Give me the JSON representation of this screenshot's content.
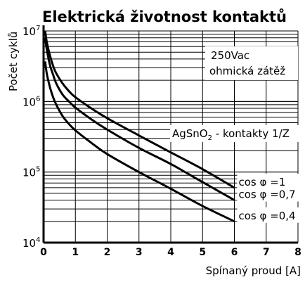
{
  "chart_data": {
    "type": "line",
    "title": "Elektrická životnost kontaktů",
    "xlabel": "Spínaný proud [A]",
    "ylabel": "Počet cyklů",
    "y_scale": "log",
    "grid": true,
    "xlim": [
      0,
      8
    ],
    "ylim": [
      10000,
      10000000
    ],
    "x_ticks": [
      "0",
      "1",
      "2",
      "3",
      "4",
      "5",
      "6",
      "7",
      "8"
    ],
    "y_ticks": [
      {
        "value": 10000,
        "base": "10",
        "exp": "4"
      },
      {
        "value": 100000,
        "base": "10",
        "exp": "5"
      },
      {
        "value": 1000000,
        "base": "10",
        "exp": "6"
      },
      {
        "value": 10000000,
        "base": "10",
        "exp": "7"
      }
    ],
    "annotations": {
      "voltage": "250Vac",
      "load": "ohmická zátěž",
      "material_prefix": "AgSnO",
      "material_sub": "2",
      "material_suffix": " - kontakty 1/Z"
    },
    "series": [
      {
        "name": "cos φ =1",
        "x": [
          0.05,
          0.1,
          0.2,
          0.3,
          0.4,
          0.6,
          0.8,
          1,
          1.5,
          2,
          3,
          4,
          5,
          6
        ],
        "y": [
          10000000,
          7000000,
          4500000,
          3200000,
          2500000,
          1800000,
          1400000,
          1150000,
          800000,
          580000,
          330000,
          190000,
          110000,
          60000
        ]
      },
      {
        "name": "cos φ =0,7",
        "x": [
          0.05,
          0.1,
          0.2,
          0.3,
          0.4,
          0.6,
          0.8,
          1,
          1.5,
          2,
          3,
          4,
          5,
          6
        ],
        "y": [
          8000000,
          5500000,
          3300000,
          2400000,
          1800000,
          1250000,
          1000000,
          820000,
          560000,
          400000,
          220000,
          130000,
          72000,
          40000
        ]
      },
      {
        "name": "cos φ =0,4",
        "x": [
          0.05,
          0.1,
          0.2,
          0.3,
          0.4,
          0.6,
          0.8,
          1,
          1.5,
          2,
          3,
          4,
          5,
          6
        ],
        "y": [
          3700000,
          2500000,
          1600000,
          1150000,
          900000,
          620000,
          480000,
          390000,
          260000,
          180000,
          100000,
          58000,
          33000,
          20000
        ]
      }
    ]
  }
}
